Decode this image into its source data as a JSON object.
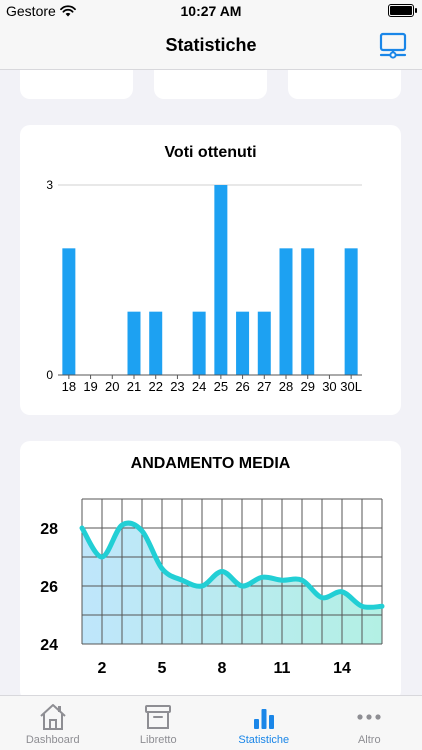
{
  "status_bar": {
    "carrier": "Gestore",
    "time": "10:27 AM"
  },
  "nav": {
    "title": "Statistiche",
    "right_icon": "monitor-icon"
  },
  "grades_chart": {
    "title": "Voti ottenuti",
    "type": "bar",
    "categories": [
      "18",
      "19",
      "20",
      "21",
      "22",
      "23",
      "24",
      "25",
      "26",
      "27",
      "28",
      "29",
      "30",
      "30L"
    ],
    "values": [
      2,
      0,
      0,
      1,
      1,
      0,
      1,
      3,
      1,
      1,
      2,
      2,
      0,
      2
    ],
    "yticks": [
      "3",
      "0"
    ],
    "ylim": [
      0,
      3
    ],
    "bar_color": "#1da1f2"
  },
  "average_chart": {
    "title": "ANDAMENTO MEDIA",
    "type": "area",
    "x": [
      1,
      2,
      3,
      4,
      5,
      6,
      7,
      8,
      9,
      10,
      11,
      12,
      13,
      14,
      15,
      16
    ],
    "values": [
      28.0,
      27.0,
      28.1,
      27.9,
      26.6,
      26.2,
      26.0,
      26.5,
      26.0,
      26.3,
      26.2,
      26.2,
      25.6,
      25.8,
      25.3,
      25.3
    ],
    "xticks": [
      "2",
      "5",
      "8",
      "11",
      "14"
    ],
    "yticks": [
      "28",
      "26",
      "24"
    ],
    "ylim": [
      24,
      29
    ],
    "line_color": "#22cfd5"
  },
  "tabs": [
    {
      "label": "Dashboard",
      "icon": "home-icon",
      "active": false
    },
    {
      "label": "Libretto",
      "icon": "archive-box-icon",
      "active": false
    },
    {
      "label": "Statistiche",
      "icon": "bar-chart-icon",
      "active": true
    },
    {
      "label": "Altro",
      "icon": "more-dots-icon",
      "active": false
    }
  ]
}
